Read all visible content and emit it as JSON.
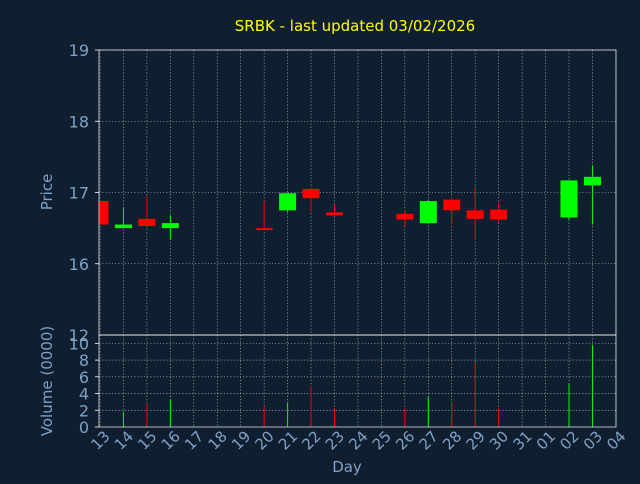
{
  "title": "SRBK - last updated 03/02/2026",
  "colors": {
    "background": "#0f1f30",
    "title": "#ffff00",
    "axis_text": "#7fa1c6",
    "plot_border": "#ffffff",
    "grid": "#ffffff",
    "up": "#00ff00",
    "down": "#ff0000"
  },
  "chart_data": [
    {
      "type": "candlestick",
      "ylabel": "Price",
      "ylim": [
        15,
        19
      ],
      "yticks": [
        16,
        17,
        18,
        19
      ],
      "grid": true,
      "x_categories": [
        "13",
        "14",
        "15",
        "16",
        "17",
        "18",
        "19",
        "20",
        "21",
        "22",
        "23",
        "24",
        "25",
        "26",
        "27",
        "28",
        "29",
        "30",
        "31",
        "01",
        "02",
        "03",
        "04"
      ],
      "candles": [
        {
          "day": "13",
          "open": 16.88,
          "close": 16.55,
          "high": 16.88,
          "low": 16.55
        },
        {
          "day": "14",
          "open": 16.5,
          "close": 16.55,
          "high": 16.78,
          "low": 16.5
        },
        {
          "day": "15",
          "open": 16.63,
          "close": 16.53,
          "high": 16.95,
          "low": 16.5
        },
        {
          "day": "16",
          "open": 16.5,
          "close": 16.57,
          "high": 16.68,
          "low": 16.35
        },
        {
          "day": "20",
          "open": 16.5,
          "close": 16.48,
          "high": 16.87,
          "low": 16.47
        },
        {
          "day": "21",
          "open": 16.75,
          "close": 16.99,
          "high": 17.0,
          "low": 16.72
        },
        {
          "day": "22",
          "open": 17.05,
          "close": 16.92,
          "high": 17.07,
          "low": 16.72
        },
        {
          "day": "23",
          "open": 16.72,
          "close": 16.68,
          "high": 16.82,
          "low": 16.68
        },
        {
          "day": "26",
          "open": 16.7,
          "close": 16.62,
          "high": 16.76,
          "low": 16.53
        },
        {
          "day": "27",
          "open": 16.57,
          "close": 16.88,
          "high": 16.9,
          "low": 16.57
        },
        {
          "day": "28",
          "open": 16.9,
          "close": 16.75,
          "high": 16.9,
          "low": 16.55
        },
        {
          "day": "29",
          "open": 16.75,
          "close": 16.63,
          "high": 17.08,
          "low": 16.33
        },
        {
          "day": "30",
          "open": 16.76,
          "close": 16.62,
          "high": 16.85,
          "low": 16.57
        },
        {
          "day": "02",
          "open": 16.65,
          "close": 17.17,
          "high": 17.17,
          "low": 16.62
        },
        {
          "day": "03",
          "open": 17.1,
          "close": 17.22,
          "high": 17.38,
          "low": 16.55
        }
      ]
    },
    {
      "type": "bar",
      "ylabel": "Volume (0000)",
      "xlabel": "Day",
      "ylim": [
        0,
        11
      ],
      "yticks": [
        0,
        2,
        4,
        6,
        8,
        10
      ],
      "grid": true,
      "categories": [
        "13",
        "14",
        "15",
        "16",
        "17",
        "18",
        "19",
        "20",
        "21",
        "22",
        "23",
        "24",
        "25",
        "26",
        "27",
        "28",
        "29",
        "30",
        "31",
        "01",
        "02",
        "03",
        "04"
      ],
      "bars": [
        {
          "day": "14",
          "value": 1.7,
          "direction": "up"
        },
        {
          "day": "15",
          "value": 2.8,
          "direction": "down"
        },
        {
          "day": "16",
          "value": 3.2,
          "direction": "up"
        },
        {
          "day": "20",
          "value": 2.4,
          "direction": "down"
        },
        {
          "day": "21",
          "value": 2.9,
          "direction": "up"
        },
        {
          "day": "22",
          "value": 4.9,
          "direction": "down"
        },
        {
          "day": "23",
          "value": 2.1,
          "direction": "down"
        },
        {
          "day": "26",
          "value": 2.2,
          "direction": "down"
        },
        {
          "day": "27",
          "value": 3.6,
          "direction": "up"
        },
        {
          "day": "28",
          "value": 3.0,
          "direction": "down"
        },
        {
          "day": "29",
          "value": 7.8,
          "direction": "down"
        },
        {
          "day": "30",
          "value": 2.3,
          "direction": "down"
        },
        {
          "day": "02",
          "value": 5.2,
          "direction": "up"
        },
        {
          "day": "03",
          "value": 9.8,
          "direction": "up"
        }
      ]
    }
  ]
}
